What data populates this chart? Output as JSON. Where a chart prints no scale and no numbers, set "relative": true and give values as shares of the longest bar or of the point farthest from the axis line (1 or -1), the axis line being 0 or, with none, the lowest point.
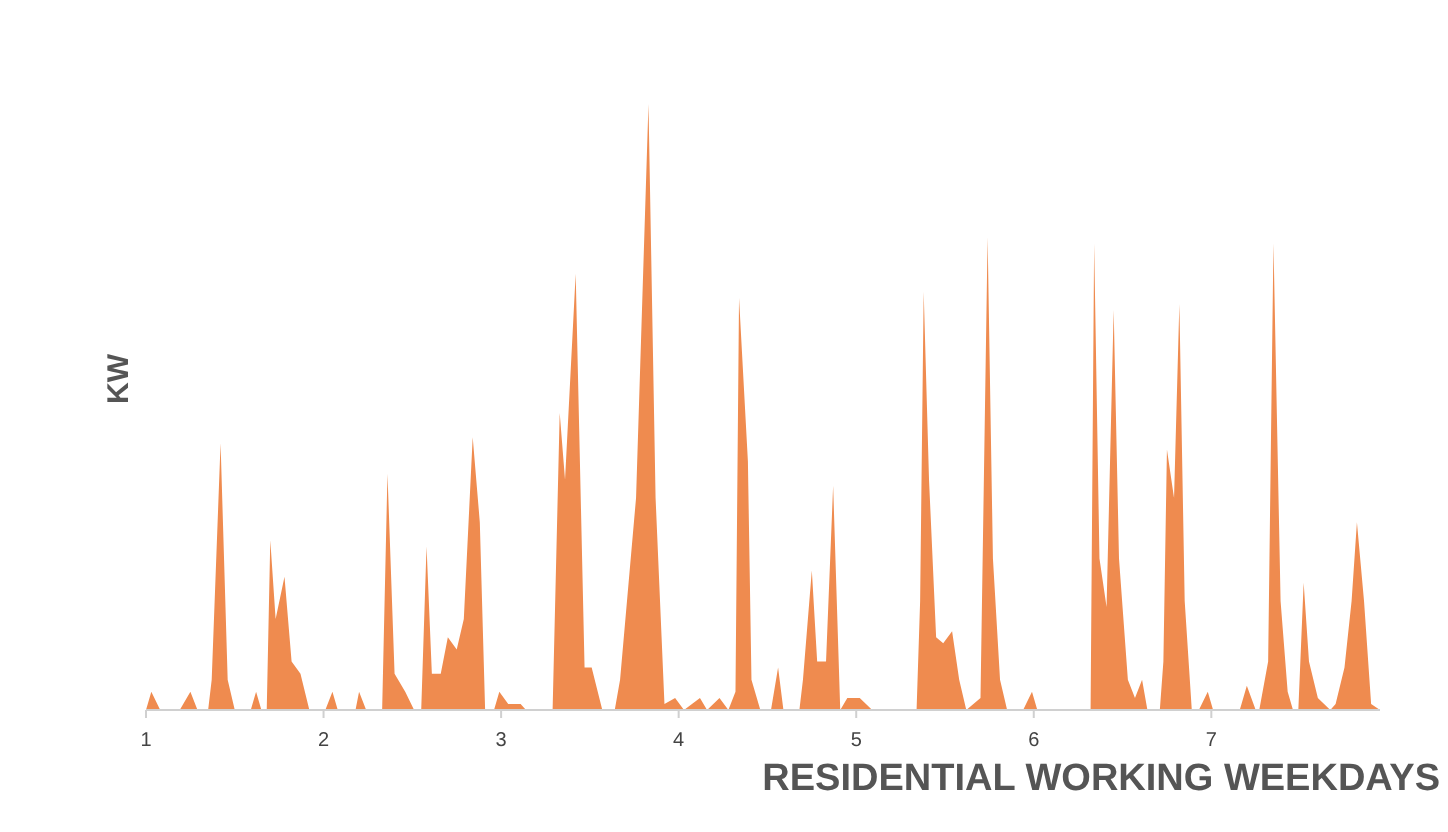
{
  "chart_data": {
    "type": "area",
    "relative": true,
    "xlabel": "RESIDENTIAL WORKING WEEKDAYS",
    "ylabel": "KW",
    "xlim": [
      1,
      7.95
    ],
    "xticks": [
      1,
      2,
      3,
      4,
      5,
      6,
      7
    ],
    "series": [
      {
        "color": "#ef8b4f",
        "x": [
          1.0,
          1.03,
          1.08,
          1.19,
          1.25,
          1.29,
          1.35,
          1.37,
          1.42,
          1.46,
          1.5,
          1.59,
          1.62,
          1.65,
          1.68,
          1.7,
          1.73,
          1.78,
          1.82,
          1.87,
          1.92,
          2.01,
          2.05,
          2.08,
          2.18,
          2.2,
          2.24,
          2.33,
          2.36,
          2.4,
          2.46,
          2.51,
          2.55,
          2.58,
          2.61,
          2.66,
          2.7,
          2.75,
          2.79,
          2.84,
          2.88,
          2.91,
          2.96,
          2.99,
          3.04,
          3.11,
          3.14,
          3.29,
          3.33,
          3.36,
          3.42,
          3.47,
          3.51,
          3.57,
          3.64,
          3.67,
          3.76,
          3.83,
          3.87,
          3.92,
          3.98,
          4.03,
          4.12,
          4.16,
          4.23,
          4.28,
          4.32,
          4.34,
          4.39,
          4.41,
          4.46,
          4.52,
          4.56,
          4.59,
          4.68,
          4.7,
          4.75,
          4.78,
          4.83,
          4.87,
          4.91,
          4.95,
          5.02,
          5.09,
          5.2,
          5.34,
          5.36,
          5.38,
          5.41,
          5.45,
          5.49,
          5.54,
          5.58,
          5.62,
          5.7,
          5.74,
          5.77,
          5.81,
          5.85,
          5.94,
          5.99,
          6.02,
          6.11,
          6.32,
          6.34,
          6.37,
          6.41,
          6.45,
          6.48,
          6.53,
          6.57,
          6.61,
          6.64,
          6.71,
          6.73,
          6.75,
          6.79,
          6.82,
          6.85,
          6.89,
          6.93,
          6.98,
          7.01,
          7.16,
          7.17,
          7.2,
          7.25,
          7.27,
          7.32,
          7.35,
          7.39,
          7.43,
          7.46,
          7.49,
          7.52,
          7.55,
          7.6,
          7.67,
          7.7,
          7.75,
          7.79,
          7.82,
          7.86,
          7.9,
          7.95
        ],
        "values": [
          0,
          0.03,
          0,
          0,
          0.03,
          0,
          0,
          0.05,
          0.44,
          0.05,
          0,
          0,
          0.03,
          0,
          0,
          0.28,
          0.15,
          0.22,
          0.08,
          0.06,
          0,
          0,
          0.03,
          0,
          0,
          0.03,
          0,
          0,
          0.39,
          0.06,
          0.03,
          0,
          0,
          0.27,
          0.06,
          0.06,
          0.12,
          0.1,
          0.15,
          0.45,
          0.31,
          0,
          0,
          0.03,
          0.01,
          0.01,
          0,
          0,
          0.49,
          0.38,
          0.72,
          0.07,
          0.07,
          0,
          0,
          0.05,
          0.35,
          1,
          0.35,
          0.01,
          0.02,
          0,
          0.02,
          0,
          0.02,
          0,
          0.03,
          0.68,
          0.41,
          0.05,
          0,
          0,
          0.07,
          0,
          0,
          0.05,
          0.23,
          0.08,
          0.08,
          0.37,
          0,
          0.02,
          0.02,
          0,
          0,
          0,
          0.18,
          0.69,
          0.38,
          0.12,
          0.11,
          0.13,
          0.05,
          0,
          0.02,
          0.78,
          0.25,
          0.05,
          0,
          0,
          0.03,
          0,
          0,
          0,
          0.77,
          0.25,
          0.17,
          0.66,
          0.25,
          0.05,
          0.02,
          0.05,
          0,
          0,
          0.08,
          0.43,
          0.35,
          0.67,
          0.18,
          0,
          0,
          0.03,
          0,
          0,
          0.01,
          0.04,
          0,
          0,
          0.08,
          0.77,
          0.18,
          0.03,
          0,
          0,
          0.21,
          0.08,
          0.02,
          0,
          0.01,
          0.07,
          0.18,
          0.31,
          0.18,
          0.01,
          0
        ]
      }
    ]
  }
}
